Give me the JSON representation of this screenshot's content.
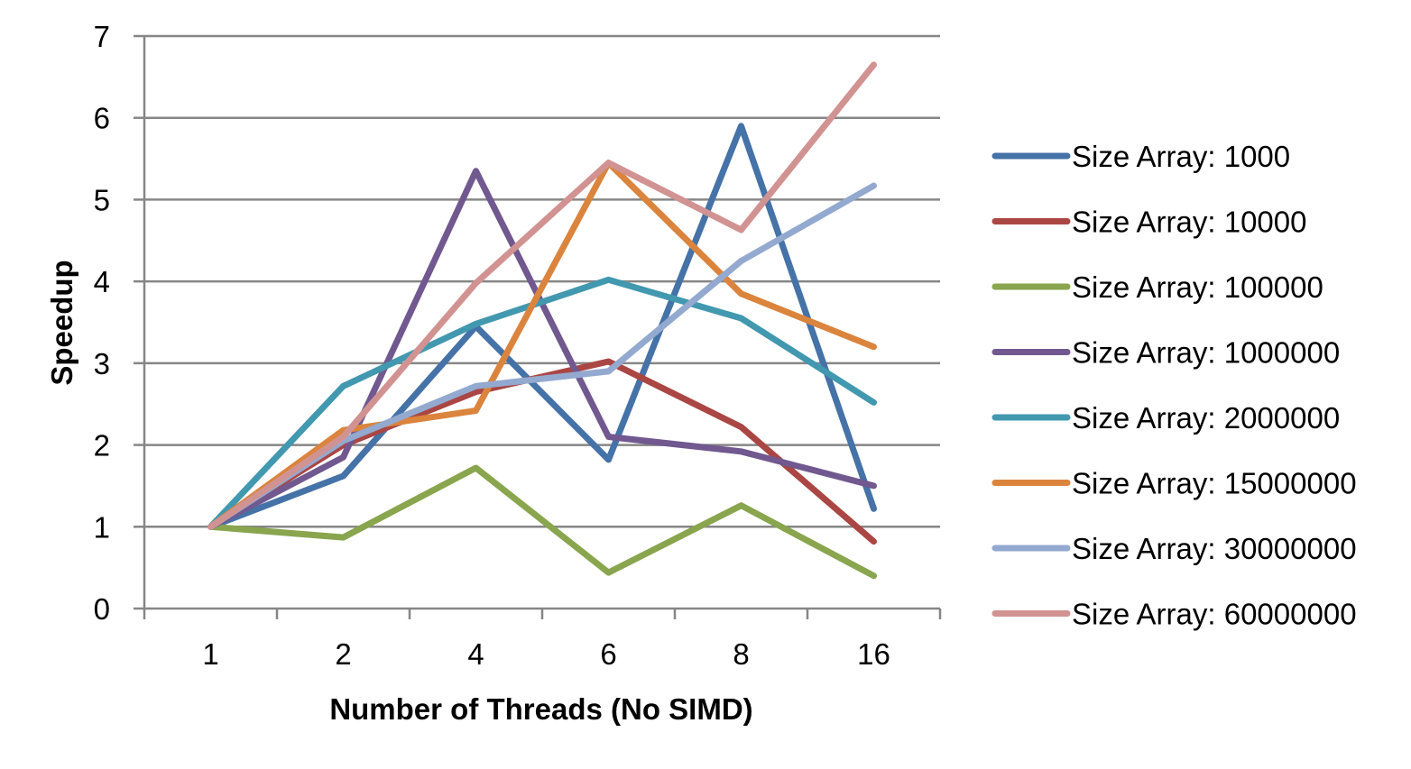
{
  "chart_data": {
    "type": "line",
    "title": "",
    "xlabel": "Number of Threads (No SIMD)",
    "ylabel": "Speedup",
    "categories": [
      "1",
      "2",
      "4",
      "6",
      "8",
      "16"
    ],
    "ylim": [
      0,
      7
    ],
    "yticks": [
      "0",
      "1",
      "2",
      "3",
      "4",
      "5",
      "6",
      "7"
    ],
    "grid": "horizontal",
    "legend_position": "right",
    "series": [
      {
        "name": "Size Array: 1000",
        "color": "#4572A7",
        "values": [
          1,
          1.62,
          3.45,
          1.82,
          5.9,
          1.22
        ]
      },
      {
        "name": "Size Array: 10000",
        "color": "#AA4643",
        "values": [
          1,
          2.0,
          2.65,
          3.02,
          2.22,
          0.82
        ]
      },
      {
        "name": "Size Array: 100000",
        "color": "#89A54E",
        "values": [
          1,
          0.87,
          1.72,
          0.44,
          1.26,
          0.4
        ]
      },
      {
        "name": "Size Array: 1000000",
        "color": "#71588F",
        "values": [
          1,
          1.85,
          5.35,
          2.1,
          1.92,
          1.5
        ]
      },
      {
        "name": "Size Array: 2000000",
        "color": "#4198AF",
        "values": [
          1,
          2.72,
          3.48,
          4.02,
          3.55,
          2.52
        ]
      },
      {
        "name": "Size Array: 15000000",
        "color": "#DB843D",
        "values": [
          1,
          2.18,
          2.42,
          5.45,
          3.85,
          3.2
        ]
      },
      {
        "name": "Size Array: 30000000",
        "color": "#93A9CF",
        "values": [
          1,
          2.05,
          2.72,
          2.9,
          4.25,
          5.17
        ]
      },
      {
        "name": "Size Array: 60000000",
        "color": "#D19392",
        "values": [
          1,
          2.1,
          3.98,
          5.45,
          4.63,
          6.65
        ]
      }
    ]
  }
}
